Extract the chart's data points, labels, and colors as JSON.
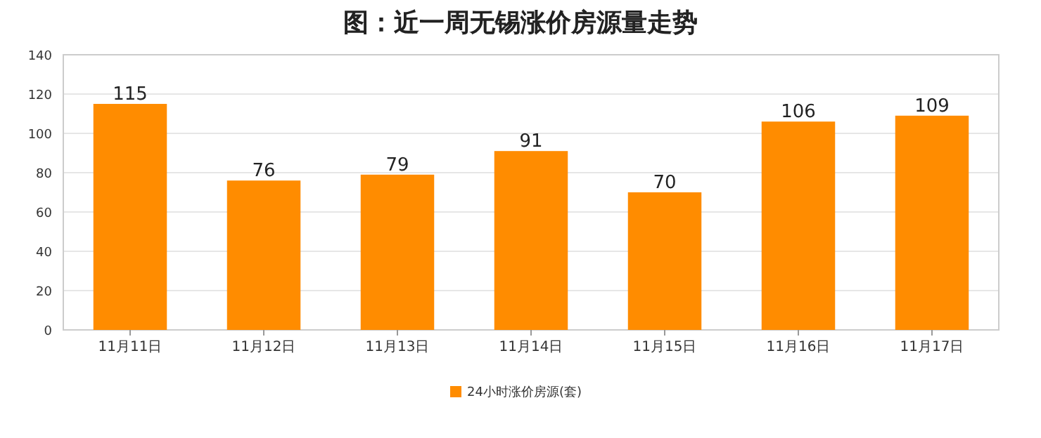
{
  "chart_data": {
    "type": "bar",
    "title": "图：近一周无锡涨价房源量走势",
    "categories": [
      "11月11日",
      "11月12日",
      "11月13日",
      "11月14日",
      "11月15日",
      "11月16日",
      "11月17日"
    ],
    "series": [
      {
        "name": "24小时涨价房源(套)",
        "color": "#ff8c00",
        "values": [
          115,
          76,
          79,
          91,
          70,
          106,
          109
        ]
      }
    ],
    "ylim": [
      0,
      140
    ],
    "yticks": [
      0,
      20,
      40,
      60,
      80,
      100,
      120,
      140
    ],
    "grid": "y",
    "legend": "bottom",
    "data_labels": true
  }
}
